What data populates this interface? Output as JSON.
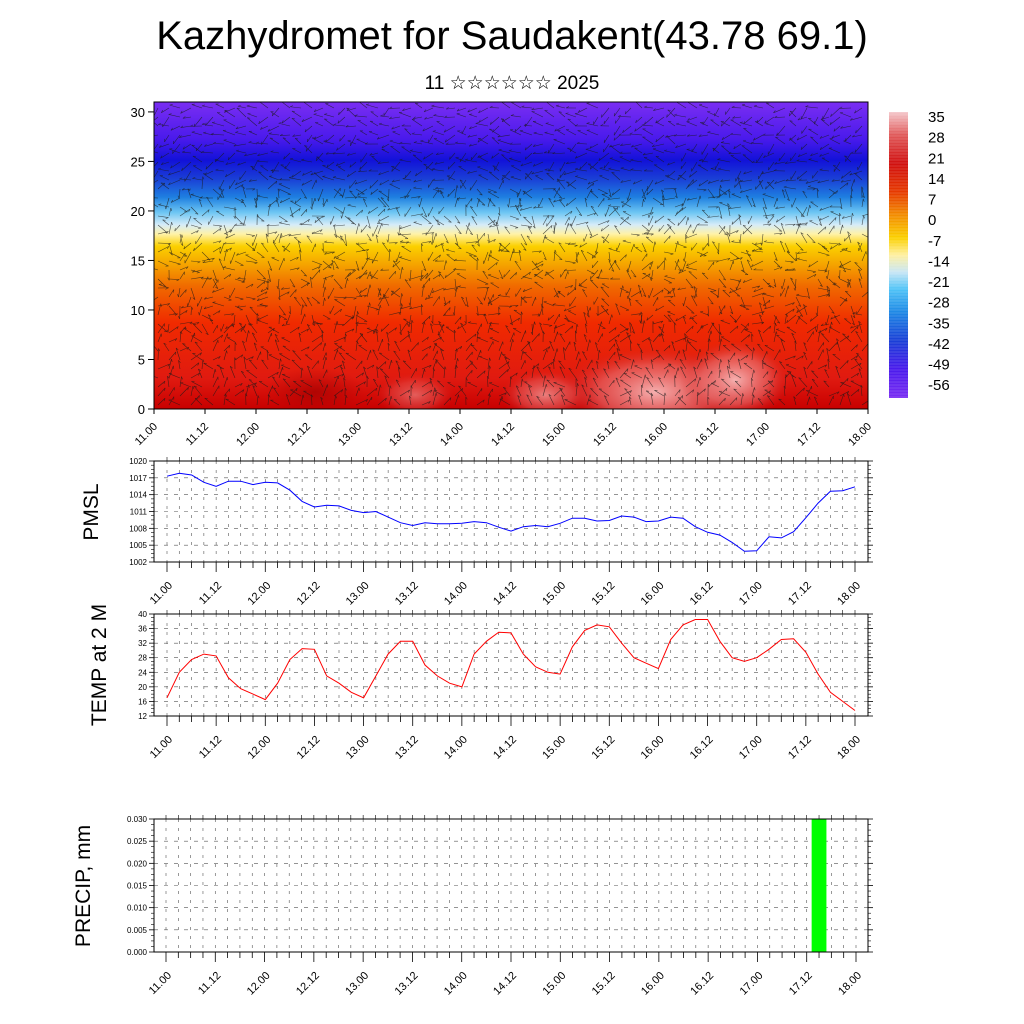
{
  "header": {
    "title": "Kazhydromet for Saudakent(43.78 69.1)",
    "subtitle": "11 ☆☆☆☆☆☆ 2025"
  },
  "chart_data": [
    {
      "id": "cross-section",
      "type": "heatmap",
      "title": "",
      "xlabel": "",
      "ylabel": "",
      "x_ticks": [
        "11.00",
        "11.12",
        "12.00",
        "12.12",
        "13.00",
        "13.12",
        "14.00",
        "14.12",
        "15.00",
        "15.12",
        "16.00",
        "16.12",
        "17.00",
        "17.12",
        "18.00"
      ],
      "y_ticks": [
        0,
        5,
        10,
        15,
        20,
        25,
        30
      ],
      "ylim": [
        0,
        31
      ],
      "colorbar_labels": [
        "35",
        "28",
        "21",
        "14",
        "7",
        "0",
        "-7",
        "-14",
        "-21",
        "-28",
        "-35",
        "-42",
        "-49",
        "-56"
      ],
      "colorbar_colors": [
        "#f4c8cc",
        "#e05a5a",
        "#d01010",
        "#e63a00",
        "#f28c00",
        "#fbd000",
        "#fff0a0",
        "#c8e6f5",
        "#4fc3f7",
        "#1e88e5",
        "#1a3fd6",
        "#2f1ee8",
        "#5522f0",
        "#7a2ef2"
      ],
      "overlay": "wind vectors",
      "grid": false
    },
    {
      "id": "pmsl",
      "type": "line",
      "ylabel": "PMSL",
      "x_ticks": [
        "11.00",
        "11.12",
        "12.00",
        "12.12",
        "13.00",
        "13.12",
        "14.00",
        "14.12",
        "15.00",
        "15.12",
        "16.00",
        "16.12",
        "17.00",
        "17.12",
        "18.00"
      ],
      "y_ticks": [
        1002,
        1005,
        1008,
        1011,
        1014,
        1017,
        1020
      ],
      "ylim": [
        1002,
        1020
      ],
      "line_color": "#0000ff",
      "grid": true,
      "values": [
        1017.3,
        1017.8,
        1017.5,
        1016.2,
        1015.5,
        1016.4,
        1016.4,
        1015.8,
        1016.2,
        1016.1,
        1014.8,
        1012.8,
        1011.8,
        1012.1,
        1012.0,
        1011.2,
        1010.8,
        1011.0,
        1010.0,
        1009.0,
        1008.5,
        1009.0,
        1008.8,
        1008.8,
        1008.9,
        1009.2,
        1009.0,
        1008.2,
        1007.5,
        1008.3,
        1008.5,
        1008.3,
        1008.9,
        1009.8,
        1009.8,
        1009.3,
        1009.4,
        1010.2,
        1010.0,
        1009.2,
        1009.3,
        1010.0,
        1009.8,
        1008.3,
        1007.3,
        1006.8,
        1005.5,
        1003.9,
        1004.0,
        1006.5,
        1006.3,
        1007.4,
        1009.9,
        1012.5,
        1014.6,
        1014.7,
        1015.4
      ]
    },
    {
      "id": "temp2m",
      "type": "line",
      "ylabel": "TEMP at 2 M",
      "x_ticks": [
        "11.00",
        "11.12",
        "12.00",
        "12.12",
        "13.00",
        "13.12",
        "14.00",
        "14.12",
        "15.00",
        "15.12",
        "16.00",
        "16.12",
        "17.00",
        "17.12",
        "18.00"
      ],
      "y_ticks": [
        12,
        16,
        20,
        24,
        28,
        32,
        36,
        40
      ],
      "ylim": [
        12,
        40
      ],
      "line_color": "#ff0000",
      "grid": true,
      "values": [
        17,
        24,
        27.5,
        29,
        28.5,
        22.5,
        19.5,
        18,
        16.5,
        21,
        27.5,
        30.5,
        30.3,
        23,
        21,
        18.5,
        17,
        23,
        29,
        32.5,
        32.5,
        26,
        23,
        21,
        20,
        29,
        32.5,
        35,
        34.8,
        29,
        25.5,
        24,
        23.5,
        31,
        35.5,
        37,
        36.5,
        32,
        28,
        26.5,
        25,
        33,
        37,
        38.5,
        38.5,
        32.5,
        28,
        27,
        28,
        30.3,
        33,
        33.2,
        29.5,
        23.5,
        18.5,
        16,
        13.5
      ]
    },
    {
      "id": "precip",
      "type": "bar",
      "ylabel": "PRECIP, mm",
      "x_ticks": [
        "11.00",
        "11.12",
        "12.00",
        "12.12",
        "13.00",
        "13.12",
        "14.00",
        "14.12",
        "15.00",
        "15.12",
        "16.00",
        "16.12",
        "17.00",
        "17.12",
        "18.00"
      ],
      "y_ticks": [
        "0.000",
        "0.005",
        "0.010",
        "0.015",
        "0.020",
        "0.025",
        "0.030"
      ],
      "ylim": [
        0,
        0.03
      ],
      "bar_color": "#00ff00",
      "grid": true,
      "bars": [
        {
          "x_hours": 159,
          "value": 0.03
        }
      ]
    }
  ]
}
